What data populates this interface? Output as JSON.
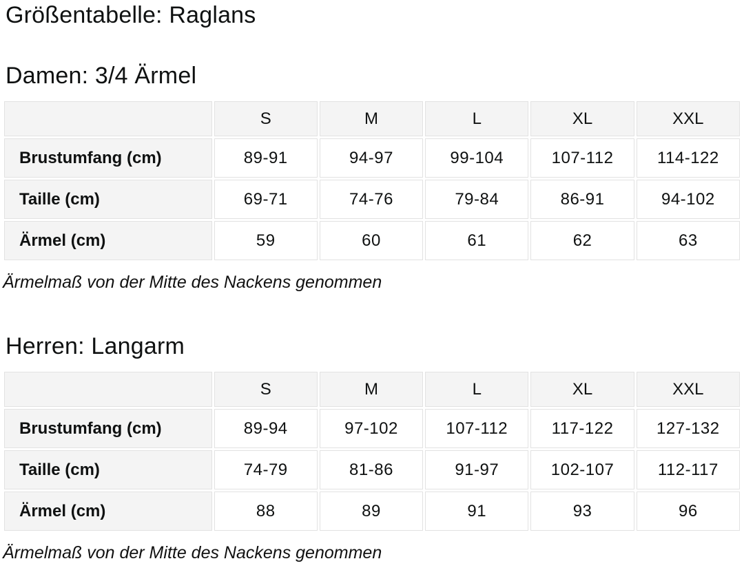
{
  "page_title": "Größentabelle: Raglans",
  "colors": {
    "cell_header_bg": "#f4f4f4",
    "cell_value_bg": "#ffffff",
    "cell_border": "#e2e2e2",
    "text": "#0f1111"
  },
  "sections": [
    {
      "heading": "Damen: 3/4 Ärmel",
      "columns": [
        "S",
        "M",
        "L",
        "XL",
        "XXL"
      ],
      "rows": [
        {
          "label": "Brustumfang (cm)",
          "values": [
            "89-91",
            "94-97",
            "99-104",
            "107-112",
            "114-122"
          ]
        },
        {
          "label": "Taille (cm)",
          "values": [
            "69-71",
            "74-76",
            "79-84",
            "86-91",
            "94-102"
          ]
        },
        {
          "label": "Ärmel (cm)",
          "values": [
            "59",
            "60",
            "61",
            "62",
            "63"
          ]
        }
      ],
      "note": "Ärmelmaß von der Mitte des Nackens genommen"
    },
    {
      "heading": "Herren: Langarm",
      "columns": [
        "S",
        "M",
        "L",
        "XL",
        "XXL"
      ],
      "rows": [
        {
          "label": "Brustumfang (cm)",
          "values": [
            "89-94",
            "97-102",
            "107-112",
            "117-122",
            "127-132"
          ]
        },
        {
          "label": "Taille (cm)",
          "values": [
            "74-79",
            "81-86",
            "91-97",
            "102-107",
            "112-117"
          ]
        },
        {
          "label": "Ärmel (cm)",
          "values": [
            "88",
            "89",
            "91",
            "93",
            "96"
          ]
        }
      ],
      "note": "Ärmelmaß von der Mitte des Nackens genommen"
    }
  ]
}
